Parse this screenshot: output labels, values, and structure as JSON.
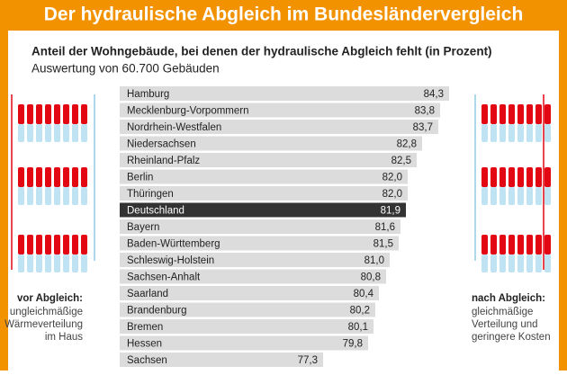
{
  "chart_data": {
    "type": "bar",
    "orientation": "horizontal",
    "title": "Der hydraulische Abgleich im Bundesländervergleich",
    "subtitle": "Anteil der Wohngebäude, bei denen der hydraulische Abgleich fehlt (in Prozent)",
    "note": "Auswertung von 60.700 Gebäuden",
    "categories": [
      "Hamburg",
      "Mecklenburg-Vorpommern",
      "Nordrhein-Westfalen",
      "Niedersachsen",
      "Rheinland-Pfalz",
      "Berlin",
      "Thüringen",
      "Deutschland",
      "Bayern",
      "Baden-Württemberg",
      "Schleswig-Holstein",
      "Sachsen-Anhalt",
      "Saarland",
      "Brandenburg",
      "Bremen",
      "Hessen",
      "Sachsen"
    ],
    "values": [
      84.3,
      83.8,
      83.7,
      82.8,
      82.5,
      82.0,
      82.0,
      81.9,
      81.6,
      81.5,
      81.0,
      80.8,
      80.4,
      80.2,
      80.1,
      79.8,
      77.3
    ],
    "value_labels": [
      "84,3",
      "83,8",
      "83,7",
      "82,8",
      "82,5",
      "82,0",
      "82,0",
      "81,9",
      "81,6",
      "81,5",
      "81,0",
      "80,8",
      "80,4",
      "80,2",
      "80,1",
      "79,8",
      "77,3"
    ],
    "color": "#dcdcdc",
    "highlight": {
      "index": 7,
      "color": "#333333"
    },
    "xlim": [
      66,
      85
    ],
    "left_caption": {
      "title": "vor Abgleich:",
      "lines": [
        "ungleichmäßige",
        "Wärmeverteilung",
        "im Haus"
      ]
    },
    "right_caption": {
      "title": "nach Abgleich:",
      "lines": [
        "gleichmäßige",
        "Verteilung und",
        "geringere Kosten"
      ]
    }
  }
}
